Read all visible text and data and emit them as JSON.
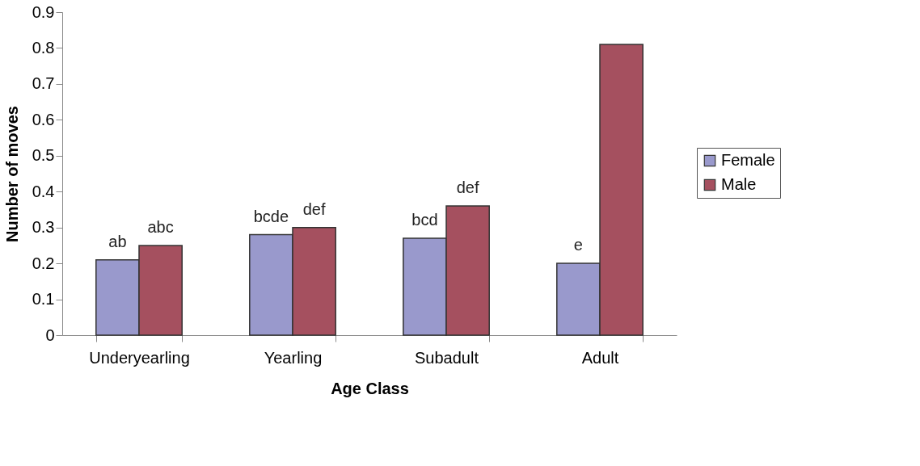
{
  "chart_data": {
    "type": "bar",
    "xlabel": "Age Class",
    "ylabel": "Number of moves",
    "categories": [
      "Underyearling",
      "Yearling",
      "Subadult",
      "Adult"
    ],
    "series": [
      {
        "name": "Female",
        "color": "#9999cc",
        "values": [
          0.21,
          0.28,
          0.27,
          0.2
        ],
        "value_labels": [
          "ab",
          "bcde",
          "bcd",
          "e"
        ]
      },
      {
        "name": "Male",
        "color": "#a5505f",
        "values": [
          0.25,
          0.3,
          0.36,
          0.81
        ],
        "value_labels": [
          "abc",
          "def",
          "def",
          null
        ]
      }
    ],
    "ylim": [
      0,
      0.9
    ],
    "yticks": [
      0,
      0.1,
      0.2,
      0.3,
      0.4,
      0.5,
      0.6,
      0.7,
      0.8,
      0.9
    ],
    "grid": false,
    "legend": "right"
  }
}
